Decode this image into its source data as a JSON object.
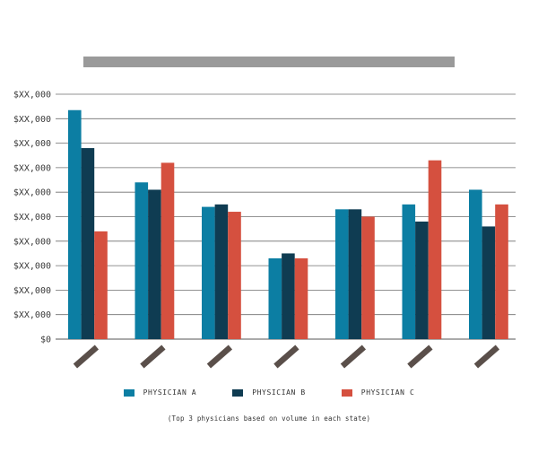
{
  "chart_data": {
    "type": "bar",
    "title_placeholder_color": "#9a9a9a",
    "categories": [
      "",
      "",
      "",
      "",
      "",
      "",
      ""
    ],
    "category_label_color": "#5a4f4a",
    "y_ticks": [
      "$0",
      "$XX,000",
      "$XX,000",
      "$XX,000",
      "$XX,000",
      "$XX,000",
      "$XX,000",
      "$XX,000",
      "$XX,000",
      "$XX,000",
      "$XX,000"
    ],
    "ylim": [
      0,
      10
    ],
    "grid": true,
    "legend_position": "bottom",
    "series": [
      {
        "name": "PHYSICIAN A",
        "color": "#0c7ea3",
        "values": [
          9.35,
          6.4,
          5.4,
          3.3,
          5.3,
          5.5,
          6.1
        ]
      },
      {
        "name": "PHYSICIAN B",
        "color": "#0f3c52",
        "values": [
          7.8,
          6.1,
          5.5,
          3.5,
          5.3,
          4.8,
          4.6
        ]
      },
      {
        "name": "PHYSICIAN C",
        "color": "#d5503f",
        "values": [
          4.4,
          7.2,
          5.2,
          3.3,
          5.0,
          7.3,
          5.5
        ]
      }
    ],
    "footnote": "(Top 3 physicians based on volume in each state)"
  }
}
